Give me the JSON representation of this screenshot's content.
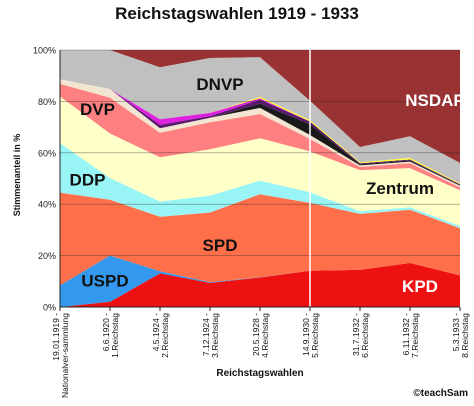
{
  "chart_data": {
    "type": "area",
    "stacked": true,
    "percent_stacked": true,
    "title": "Reichstagswahlen 1919 - 1933",
    "xlabel": "Reichstagswahlen",
    "ylabel": "Stimmenanteil in %",
    "ylim": [
      0,
      100
    ],
    "yticks": [
      "0%",
      "20%",
      "40%",
      "60%",
      "80%",
      "100%"
    ],
    "grid": true,
    "categories": [
      "19.01.1919 - Nationalver-sammlung",
      "6.6.1920 - 1.Reichstag",
      "4.5.1924 - 2.Reichstag",
      "7.12.1924 - 3.Reichstag",
      "20.5.1928 - 4.Reichstag",
      "14.9.1930 - 5.Reichstag",
      "31.7.1932 - 6.Reichstag",
      "6.11.1932 - 7.Reichstag",
      "5.3.1933 - 8.Reichstag"
    ],
    "series": [
      {
        "name": "KPD",
        "color": "#ee1111",
        "values": [
          0,
          2,
          12.6,
          9,
          10.6,
          13.1,
          14.3,
          16.9,
          12.3
        ]
      },
      {
        "name": "USPD",
        "color": "#3399ee",
        "values": [
          7.6,
          17.9,
          0.8,
          0.3,
          0.1,
          0,
          0,
          0,
          0
        ]
      },
      {
        "name": "SPD",
        "color": "#ff6f4a",
        "values": [
          32.6,
          21.6,
          20.5,
          26,
          29.8,
          24.5,
          21.6,
          20.4,
          18.3
        ]
      },
      {
        "name": "DDP",
        "color": "#99f5f5",
        "values": [
          17.4,
          8.4,
          5.7,
          6.3,
          4.9,
          3.8,
          1,
          1,
          0.9
        ]
      },
      {
        "name": "Zentrum",
        "color": "#ffffc8",
        "values": [
          16.4,
          17.2,
          16.6,
          17.3,
          15.2,
          14.8,
          15.9,
          15,
          13.9
        ]
      },
      {
        "name": "DVP",
        "color": "#ff8080",
        "values": [
          4.4,
          13.9,
          9.2,
          10.1,
          8.7,
          4.5,
          1.2,
          1.9,
          1.1
        ]
      },
      {
        "name": "",
        "color": "#f2e6d2",
        "values": [
          1.6,
          3.3,
          1.7,
          1.7,
          2.2,
          1.4,
          0.6,
          0.6,
          0.6
        ]
      },
      {
        "name": "",
        "color": "#1a1a1a",
        "values": [
          0,
          0,
          0,
          0,
          1.5,
          3.9,
          0.4,
          0.4,
          0.3
        ]
      },
      {
        "name": "",
        "color": "#5a1a6e",
        "values": [
          0,
          0,
          1.3,
          0.6,
          1.5,
          1,
          0.4,
          0.4,
          0.3
        ]
      },
      {
        "name": "",
        "color": "#e020e0",
        "values": [
          0,
          0,
          2.1,
          1.2,
          0.5,
          0,
          0,
          0,
          0
        ]
      },
      {
        "name": "",
        "color": "#ffff33",
        "values": [
          0,
          0,
          0,
          0,
          0.5,
          0.5,
          0.4,
          0.6,
          0.3
        ]
      },
      {
        "name": "DNVP",
        "color": "#c0c0c0",
        "values": [
          10.3,
          15.1,
          19.5,
          20.5,
          14.2,
          7,
          5.9,
          8.3,
          8
        ]
      },
      {
        "name": "NSDAP",
        "color": "#993333",
        "values": [
          0,
          0,
          6.5,
          3,
          2.6,
          18.3,
          37.4,
          33.1,
          43.9
        ]
      }
    ],
    "divider_after_category": "14.9.1930 - 5.Reichstag"
  },
  "footer": {
    "copyright": "©teachSam"
  }
}
